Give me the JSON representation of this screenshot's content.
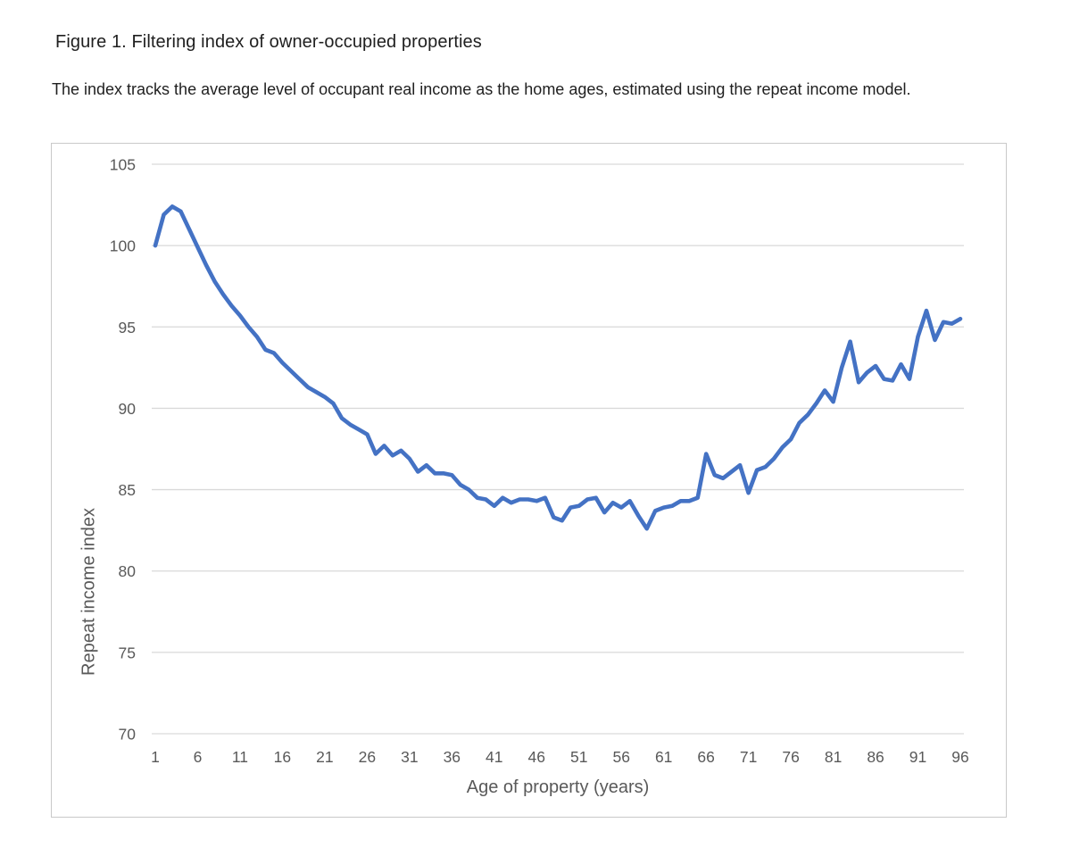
{
  "figure": {
    "title": "Figure 1. Filtering index of owner-occupied properties",
    "caption": "The index tracks the average level of occupant real income as the home ages, estimated using the repeat income model."
  },
  "chart_data": {
    "type": "line",
    "title": "Figure 1. Filtering index of owner-occupied properties",
    "xlabel": "Age of property (years)",
    "ylabel": "Repeat income index",
    "xlim": [
      1,
      96
    ],
    "ylim": [
      70,
      105
    ],
    "x_ticks": [
      1,
      6,
      11,
      16,
      21,
      26,
      31,
      36,
      41,
      46,
      51,
      56,
      61,
      66,
      71,
      76,
      81,
      86,
      91,
      96
    ],
    "y_ticks": [
      70,
      75,
      80,
      85,
      90,
      95,
      100,
      105
    ],
    "grid": "horizontal",
    "legend": "none",
    "series": [
      {
        "name": "Repeat income index",
        "color": "#4472C4",
        "x": [
          1,
          2,
          3,
          4,
          5,
          6,
          7,
          8,
          9,
          10,
          11,
          12,
          13,
          14,
          15,
          16,
          17,
          18,
          19,
          20,
          21,
          22,
          23,
          24,
          25,
          26,
          27,
          28,
          29,
          30,
          31,
          32,
          33,
          34,
          35,
          36,
          37,
          38,
          39,
          40,
          41,
          42,
          43,
          44,
          45,
          46,
          47,
          48,
          49,
          50,
          51,
          52,
          53,
          54,
          55,
          56,
          57,
          58,
          59,
          60,
          61,
          62,
          63,
          64,
          65,
          66,
          67,
          68,
          69,
          70,
          71,
          72,
          73,
          74,
          75,
          76,
          77,
          78,
          79,
          80,
          81,
          82,
          83,
          84,
          85,
          86,
          87,
          88,
          89,
          90,
          91,
          92,
          93,
          94,
          95,
          96
        ],
        "values": [
          100.0,
          101.9,
          102.4,
          102.1,
          101.0,
          99.9,
          98.8,
          97.8,
          97.0,
          96.3,
          95.7,
          95.0,
          94.4,
          93.6,
          93.4,
          92.8,
          92.3,
          91.8,
          91.3,
          91.0,
          90.7,
          90.3,
          89.4,
          89.0,
          88.7,
          88.4,
          87.2,
          87.7,
          87.1,
          87.4,
          86.9,
          86.1,
          86.5,
          86.0,
          86.0,
          85.9,
          85.3,
          85.0,
          84.5,
          84.4,
          84.0,
          84.5,
          84.2,
          84.4,
          84.4,
          84.3,
          84.5,
          83.3,
          83.1,
          83.9,
          84.0,
          84.4,
          84.5,
          83.6,
          84.2,
          83.9,
          84.3,
          83.4,
          82.6,
          83.7,
          83.9,
          84.0,
          84.3,
          84.3,
          84.5,
          87.2,
          85.9,
          85.7,
          86.1,
          86.5,
          84.8,
          86.2,
          86.4,
          86.9,
          87.6,
          88.1,
          89.1,
          89.6,
          90.3,
          91.1,
          90.4,
          92.5,
          94.1,
          91.6,
          92.2,
          92.6,
          91.8,
          91.7,
          92.7,
          91.8,
          94.4,
          96.0,
          94.2,
          95.3,
          95.2,
          95.5
        ]
      }
    ]
  },
  "style": {
    "line_color": "#4472C4",
    "grid_color": "#D9D9D9",
    "axis_text_color": "#595959",
    "frame_border_color": "#C9C9C9"
  }
}
